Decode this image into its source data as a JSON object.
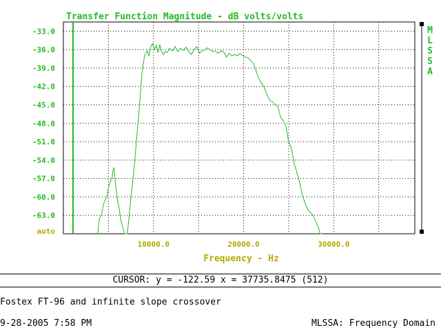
{
  "chart_data": {
    "type": "line",
    "title": "Transfer Function Magnitude - dB volts/volts",
    "xlabel": "Frequency - Hz",
    "ylabel": "",
    "xlim": [
      0,
      39000
    ],
    "ylim": [
      -66,
      -31.5
    ],
    "x_ticks": [
      10000,
      20000,
      30000
    ],
    "x_tick_labels": [
      "10000.0",
      "20000.0",
      "30000.0"
    ],
    "y_ticks": [
      -33,
      -36,
      -39,
      -42,
      -45,
      -48,
      -51,
      -54,
      -57,
      -60,
      -63
    ],
    "y_tick_labels": [
      "-33.0",
      "-36.0",
      "-39.0",
      "-42.0",
      "-45.0",
      "-48.0",
      "-51.0",
      "-54.0",
      "-57.0",
      "-60.0",
      "-63.0"
    ],
    "y_bottom_label": "auto",
    "grid": true,
    "series": [
      {
        "x": [
          3800,
          4000,
          4200,
          4500,
          4800,
          5000,
          5200,
          5400,
          5500,
          5600,
          5700,
          5800,
          6000,
          6200,
          6400,
          6600,
          6800,
          7000,
          7100,
          7300,
          7500,
          7800,
          8100,
          8400,
          8700,
          9000,
          9300,
          9500,
          9700,
          9900,
          10100,
          10300,
          10500,
          10700,
          10900,
          11100,
          11300,
          11500,
          11800,
          12100,
          12400,
          12700,
          13000,
          13300,
          13600,
          13900,
          14200,
          14500,
          14800,
          15100,
          15400,
          15700,
          16000,
          16300,
          16600,
          16900,
          17200,
          17500,
          17800,
          18100,
          18400,
          18700,
          19000,
          19300,
          19600,
          19900,
          20200,
          20500,
          20800,
          21100,
          21400,
          21700,
          22000,
          22300,
          22600,
          22900,
          23200,
          23500,
          23800,
          24100,
          24400,
          24700,
          25000,
          25300,
          25600,
          25900,
          26200,
          26500,
          26800,
          27100,
          27400,
          27700,
          28000,
          28300,
          28500,
          28700
        ],
        "y": [
          -66,
          -63.5,
          -63,
          -61,
          -60,
          -58.5,
          -57.5,
          -57,
          -55.7,
          -55.2,
          -56.5,
          -58,
          -60.5,
          -62,
          -64,
          -65,
          -66,
          -66,
          -66,
          -63,
          -60,
          -56,
          -51,
          -46,
          -40,
          -37,
          -36.2,
          -37,
          -35.5,
          -35,
          -36,
          -35.3,
          -36.5,
          -35.2,
          -36.3,
          -36.8,
          -36.3,
          -36.5,
          -35.8,
          -36.2,
          -35.5,
          -36.3,
          -35.8,
          -36.1,
          -35.6,
          -36.3,
          -36.8,
          -36,
          -35.5,
          -36.6,
          -36.2,
          -36,
          -35.7,
          -36.1,
          -36.3,
          -36.3,
          -36.6,
          -36.2,
          -36.4,
          -37.2,
          -36.6,
          -37,
          -36.8,
          -37,
          -36.6,
          -37,
          -37.2,
          -37.3,
          -37.8,
          -38.3,
          -39.5,
          -40.8,
          -41.5,
          -42.2,
          -43.3,
          -44.3,
          -44.5,
          -45,
          -45.2,
          -47,
          -47.6,
          -48.5,
          -51,
          -52,
          -54.5,
          -56,
          -57.5,
          -59.5,
          -61,
          -62,
          -62.5,
          -63,
          -64,
          -65,
          -66,
          -66
        ]
      }
    ]
  },
  "sidebar": {
    "label": "MLSSA"
  },
  "cursor": {
    "text": "CURSOR: y = -122.59 x = 37735.8475 (512)"
  },
  "caption": "Fostex FT-96 and infinite slope crossover",
  "footer": {
    "datetime": "9-28-2005 7:58 PM",
    "mode": "MLSSA: Frequency Domain"
  },
  "colors": {
    "green": "#22bb22",
    "olive": "#b8a800",
    "grid": "#000000"
  }
}
